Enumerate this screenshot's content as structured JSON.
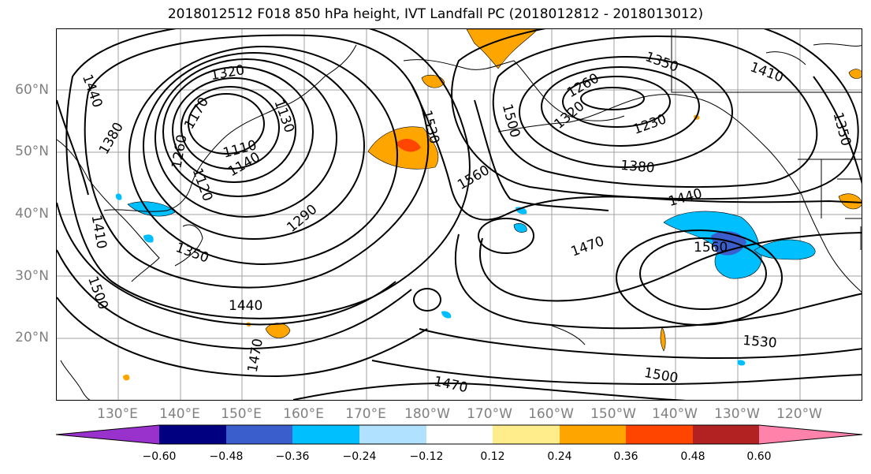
{
  "title": "2018012512 F018 850 hPa height, IVT Landfall PC (2018012812 - 2018013012)",
  "lat_labels": [
    "60°N",
    "50°N",
    "40°N",
    "30°N",
    "20°N"
  ],
  "lon_labels": [
    "130°E",
    "140°E",
    "150°E",
    "160°E",
    "170°E",
    "180°W",
    "170°W",
    "160°W",
    "150°W",
    "140°W",
    "130°W",
    "120°W"
  ],
  "contour_labels": [
    "1320",
    "1440",
    "1380",
    "1170",
    "1260",
    "1130",
    "1110",
    "1140",
    "1120",
    "1410",
    "1290",
    "1350",
    "1500",
    "1440",
    "1470",
    "1530",
    "1560",
    "1500",
    "1350",
    "1410",
    "1350",
    "1260",
    "1320",
    "1230",
    "1380",
    "1440",
    "1470",
    "1560",
    "1530",
    "1500",
    "1470"
  ],
  "colorbar": {
    "ticks": [
      "−0.60",
      "−0.48",
      "−0.36",
      "−0.24",
      "−0.12",
      "0.12",
      "0.24",
      "0.36",
      "0.48",
      "0.60"
    ],
    "colors": [
      "#9932cc",
      "#000080",
      "#3a5fcd",
      "#00bfff",
      "#b0e2ff",
      "#ffffff",
      "#ffec8b",
      "#ffa500",
      "#ff4500",
      "#b22222",
      "#ff82ab"
    ]
  },
  "shading_colors": {
    "positive_light": "#ffa500",
    "positive_strong": "#ff4500",
    "negative_light": "#00bfff",
    "negative_strong": "#3a5fcd"
  }
}
